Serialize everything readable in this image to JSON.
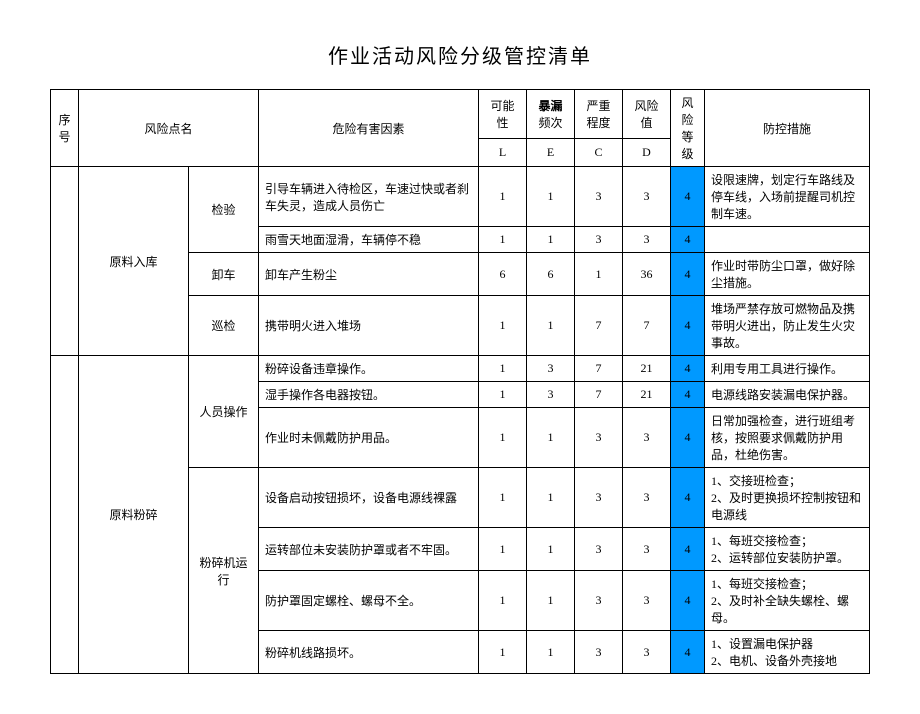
{
  "title": "作业活动风险分级管控清单",
  "header": {
    "seq": "序号",
    "riskPoint": "风险点名",
    "hazard": "危险有害因素",
    "possibility": "可能性",
    "exposure": "暴漏",
    "frequency": "频次",
    "severity": "严重程度",
    "riskValue": "风险值",
    "riskLevel": "风险等级",
    "control": "防控措施",
    "L": "L",
    "E": "E",
    "C": "C",
    "D": "D"
  },
  "groups": [
    {
      "name": "原料入库",
      "subs": [
        {
          "name": "检验",
          "rows": [
            {
              "haz": "引导车辆进入待检区，车速过快或者刹车失灵，造成人员伤亡",
              "L": "1",
              "E": "1",
              "C": "3",
              "D": "3",
              "lvl": "4",
              "ctl": "设限速牌，划定行车路线及停车线，入场前提醒司机控制车速。"
            },
            {
              "haz": "雨雪天地面湿滑，车辆停不稳",
              "L": "1",
              "E": "1",
              "C": "3",
              "D": "3",
              "lvl": "4",
              "ctl": ""
            }
          ]
        },
        {
          "name": "卸车",
          "rows": [
            {
              "haz": "卸车产生粉尘",
              "L": "6",
              "E": "6",
              "C": "1",
              "D": "36",
              "lvl": "4",
              "ctl": "作业时带防尘口罩，做好除尘措施。"
            }
          ]
        },
        {
          "name": "巡检",
          "rows": [
            {
              "haz": "携带明火进入堆场",
              "L": "1",
              "E": "1",
              "C": "7",
              "D": "7",
              "lvl": "4",
              "ctl": "堆场严禁存放可燃物品及携带明火进出，防止发生火灾事故。"
            }
          ]
        }
      ]
    },
    {
      "name": "原料粉碎",
      "subs": [
        {
          "name": "人员操作",
          "rows": [
            {
              "haz": "粉碎设备违章操作。",
              "L": "1",
              "E": "3",
              "C": "7",
              "D": "21",
              "lvl": "4",
              "ctl": "利用专用工具进行操作。"
            },
            {
              "haz": "湿手操作各电器按钮。",
              "L": "1",
              "E": "3",
              "C": "7",
              "D": "21",
              "lvl": "4",
              "ctl": "电源线路安装漏电保护器。"
            },
            {
              "haz": "作业时未佩戴防护用品。",
              "L": "1",
              "E": "1",
              "C": "3",
              "D": "3",
              "lvl": "4",
              "ctl": "日常加强检查，进行班组考核，按照要求佩戴防护用品，杜绝伤害。"
            }
          ]
        },
        {
          "name": "粉碎机运行",
          "rows": [
            {
              "haz": "设备启动按钮损坏，设备电源线裸露",
              "L": "1",
              "E": "1",
              "C": "3",
              "D": "3",
              "lvl": "4",
              "ctl": "1、交接班检查；\n2、及时更换损坏控制按钮和电源线"
            },
            {
              "haz": "运转部位未安装防护罩或者不牢固。",
              "L": "1",
              "E": "1",
              "C": "3",
              "D": "3",
              "lvl": "4",
              "ctl": "1、每班交接检查；\n2、运转部位安装防护罩。"
            },
            {
              "haz": "防护罩固定螺栓、螺母不全。",
              "L": "1",
              "E": "1",
              "C": "3",
              "D": "3",
              "lvl": "4",
              "ctl": "1、每班交接检查；\n2、及时补全缺失螺栓、螺母。"
            },
            {
              "haz": "粉碎机线路损坏。",
              "L": "1",
              "E": "1",
              "C": "3",
              "D": "3",
              "lvl": "4",
              "ctl": "1、设置漏电保护器\n2、电机、设备外壳接地"
            }
          ]
        }
      ]
    }
  ],
  "style": {
    "lvlBg": "#0099ff"
  }
}
